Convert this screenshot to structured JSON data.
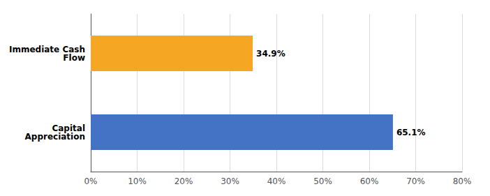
{
  "chart_data": {
    "type": "bar",
    "orientation": "horizontal",
    "categories": [
      "Capital\nAppreciation",
      "Immediate Cash\nFlow"
    ],
    "values": [
      65.1,
      34.9
    ],
    "value_labels": [
      "65.1%",
      "34.9%"
    ],
    "colors": [
      "#4472C4",
      "#F5A623"
    ],
    "xlim": [
      0,
      80
    ],
    "xticks": [
      {
        "value": 0,
        "label": "0%"
      },
      {
        "value": 10,
        "label": "10%"
      },
      {
        "value": 20,
        "label": "20%"
      },
      {
        "value": 30,
        "label": "30%"
      },
      {
        "value": 40,
        "label": "40%"
      },
      {
        "value": 50,
        "label": "50%"
      },
      {
        "value": 60,
        "label": "60%"
      },
      {
        "value": 70,
        "label": "70%"
      },
      {
        "value": 80,
        "label": "80%"
      }
    ],
    "grid": true,
    "data_labels": true
  }
}
